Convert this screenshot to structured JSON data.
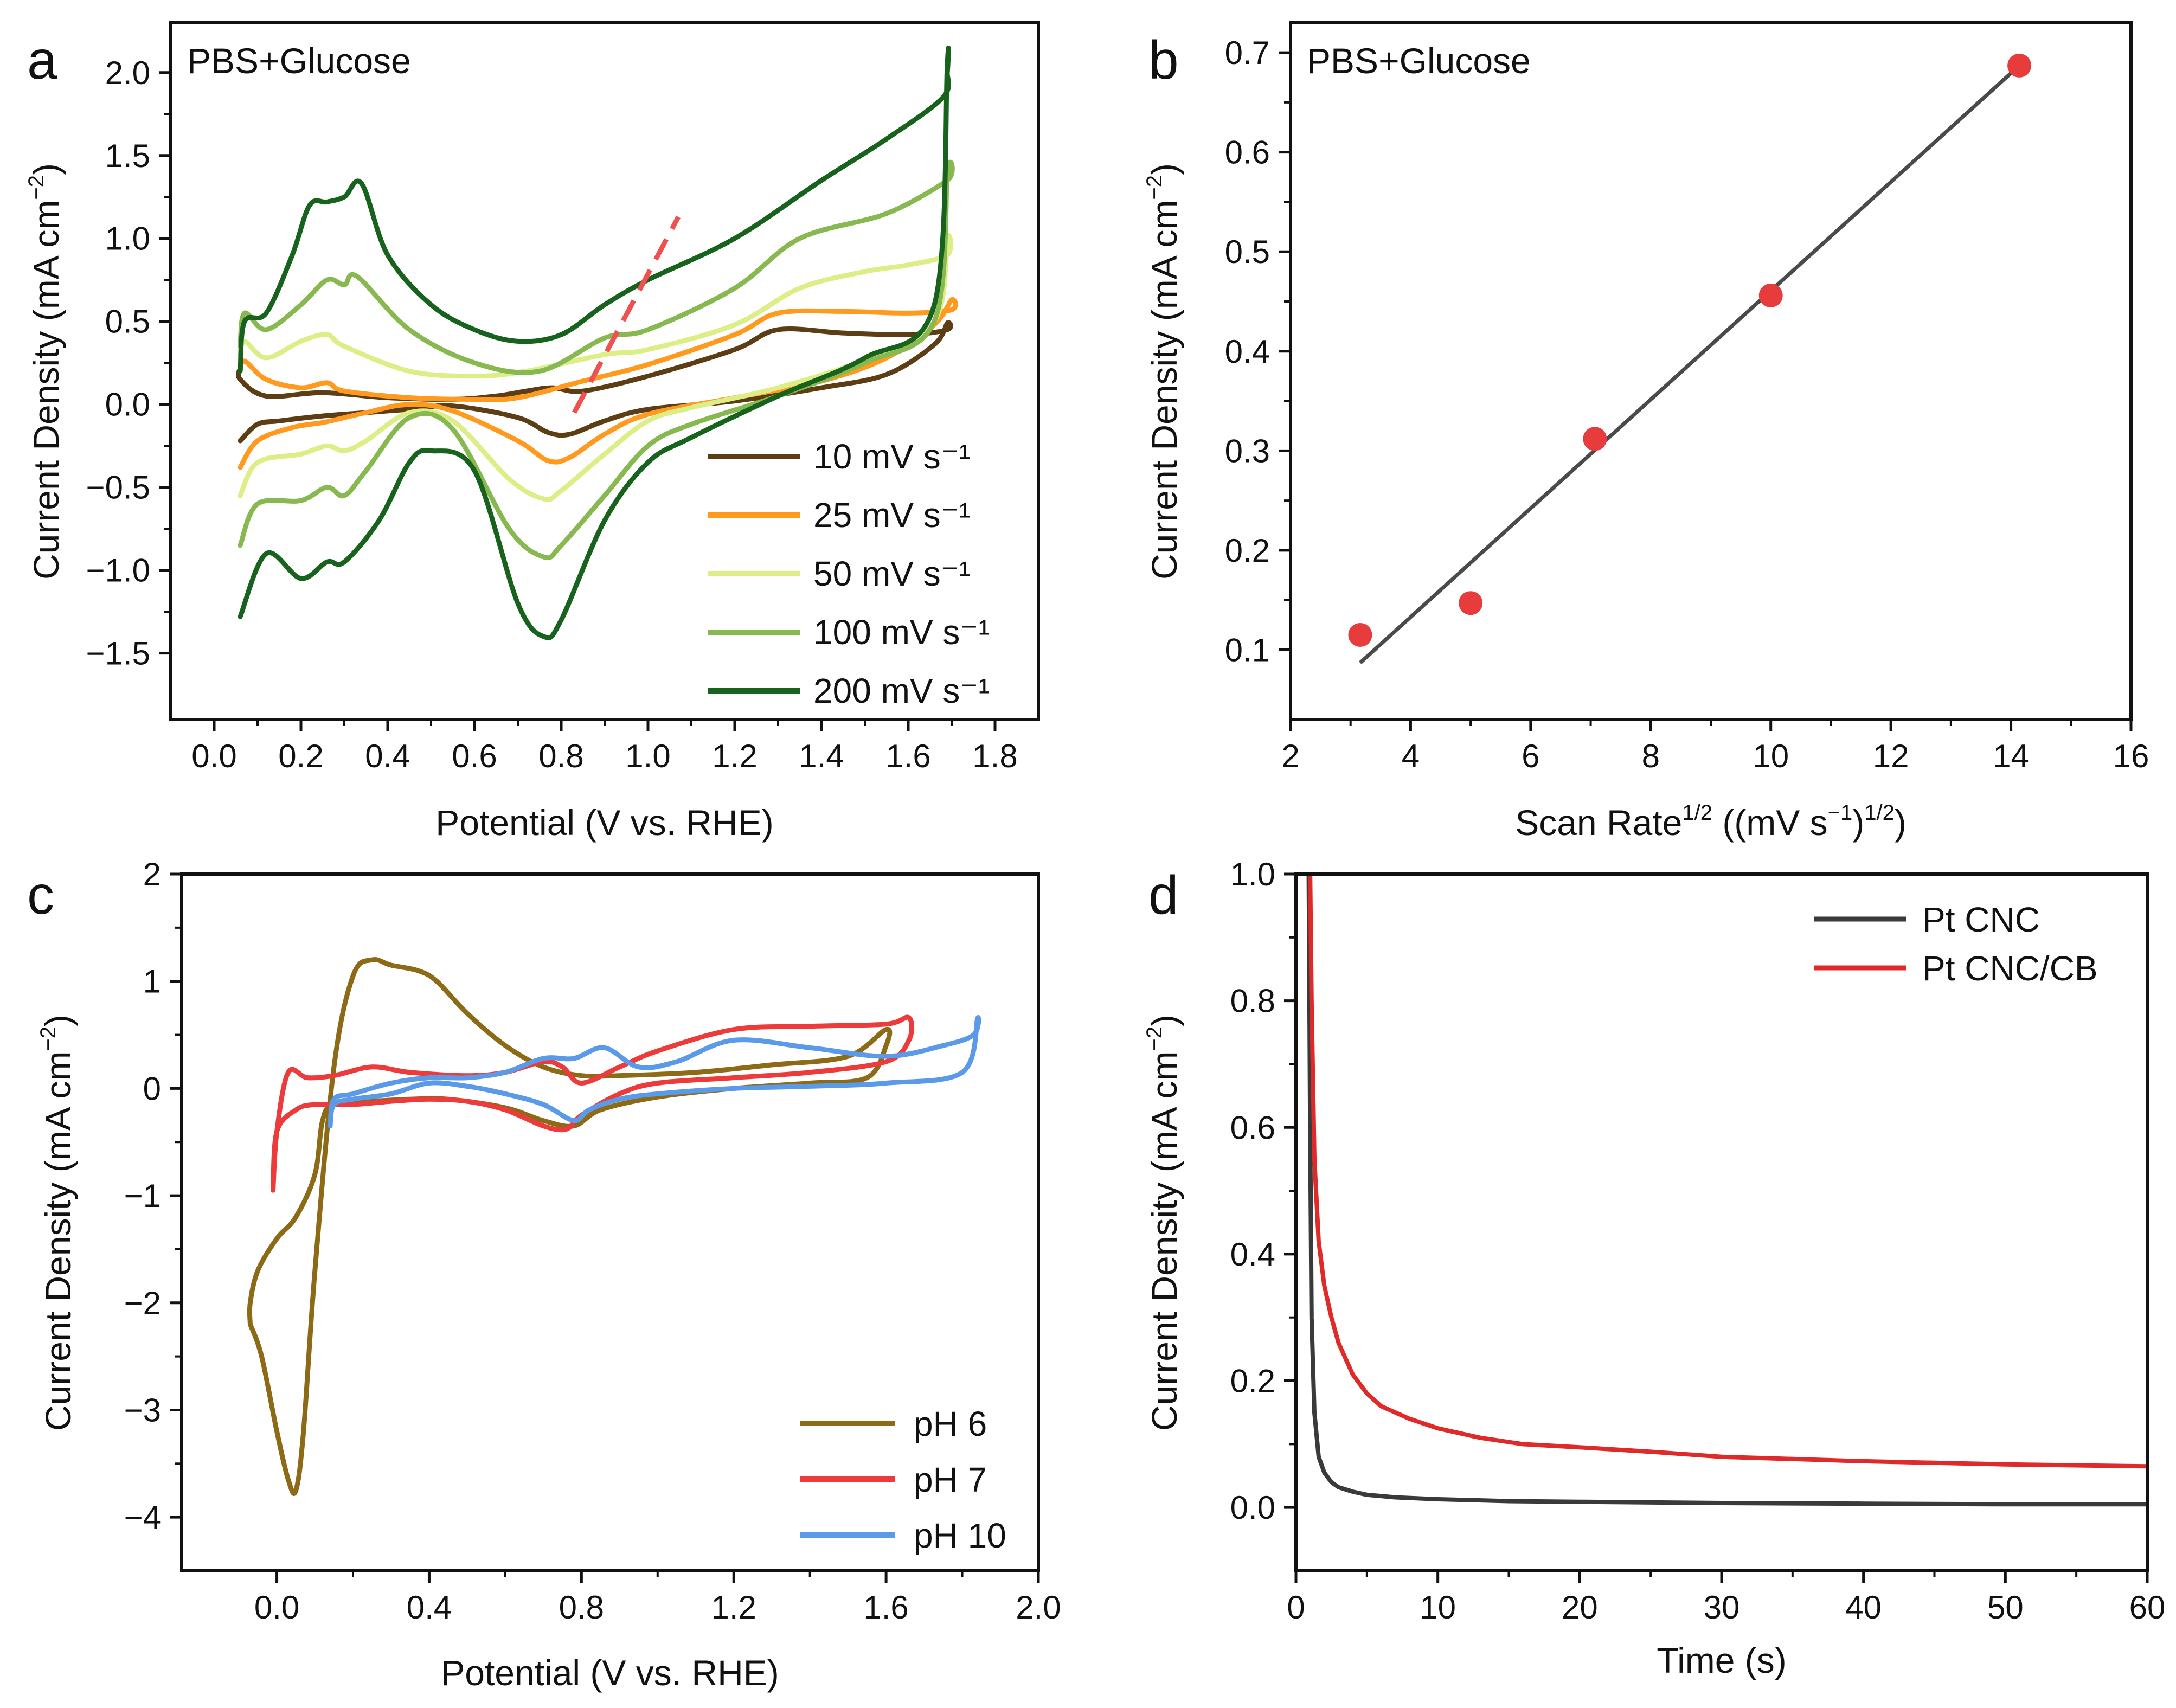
{
  "colors": {
    "s10": "#5c3d14",
    "s25": "#ff9a1f",
    "s50": "#dcee86",
    "s100": "#88b850",
    "s200": "#17621c",
    "ph6": "#8c6a16",
    "ph7": "#ed3a3a",
    "ph10": "#5b9ae8",
    "ptcnc": "#3a3a3a",
    "ptcnccb": "#e02a2a",
    "marker": "#e83c3c",
    "fit": "#4a4a4a",
    "dash": "#f05050"
  },
  "chart_data": [
    {
      "id": "a",
      "panel_label": "a",
      "type": "line",
      "title": "PBS+Glucose",
      "xlabel": "Potential (V vs. RHE)",
      "ylabel": "Current Density (mA cm",
      "ylabel_sup": "−2",
      "ylabel_close": ")",
      "xlim": [
        -0.1,
        1.9
      ],
      "ylim": [
        -1.9,
        2.3
      ],
      "xticks": [
        0.0,
        0.2,
        0.4,
        0.6,
        0.8,
        1.0,
        1.2,
        1.4,
        1.6,
        1.8
      ],
      "xtick_labels": [
        "0.0",
        "0.2",
        "0.4",
        "0.6",
        "0.8",
        "1.0",
        "1.2",
        "1.4",
        "1.6",
        "1.8"
      ],
      "yticks": [
        -1.5,
        -1.0,
        -0.5,
        0.0,
        0.5,
        1.0,
        1.5,
        2.0
      ],
      "ytick_labels": [
        "−1.5",
        "−1.0",
        "−0.5",
        "0.0",
        "0.5",
        "1.0",
        "1.5",
        "2.0"
      ],
      "legend_position": "bottom-right",
      "series": [
        {
          "name": "10 mV s⁻¹",
          "color_key": "s10",
          "x": [
            0.06,
            0.06,
            0.12,
            0.25,
            0.4,
            0.55,
            0.65,
            0.72,
            0.78,
            0.85,
            1.0,
            1.2,
            1.3,
            1.45,
            1.6,
            1.69,
            1.69,
            1.66,
            1.55,
            1.4,
            1.2,
            1.0,
            0.9,
            0.82,
            0.77,
            0.7,
            0.55,
            0.45,
            0.35,
            0.25,
            0.15,
            0.1,
            0.06
          ],
          "y": [
            0.22,
            0.15,
            0.05,
            0.07,
            0.04,
            0.03,
            0.05,
            0.08,
            0.1,
            0.08,
            0.17,
            0.33,
            0.45,
            0.43,
            0.42,
            0.45,
            0.49,
            0.36,
            0.18,
            0.1,
            0.02,
            -0.03,
            -0.1,
            -0.18,
            -0.17,
            -0.08,
            -0.01,
            -0.03,
            -0.05,
            -0.07,
            -0.1,
            -0.12,
            -0.22
          ]
        },
        {
          "name": "25 mV s⁻¹",
          "color_key": "s25",
          "x": [
            0.06,
            0.07,
            0.12,
            0.2,
            0.26,
            0.3,
            0.45,
            0.6,
            0.7,
            0.85,
            1.0,
            1.2,
            1.3,
            1.45,
            1.6,
            1.7,
            1.7,
            1.66,
            1.55,
            1.4,
            1.2,
            1.0,
            0.9,
            0.82,
            0.77,
            0.7,
            0.55,
            0.45,
            0.35,
            0.3,
            0.25,
            0.18,
            0.1,
            0.06
          ],
          "y": [
            0.2,
            0.26,
            0.15,
            0.1,
            0.13,
            0.08,
            0.04,
            0.03,
            0.04,
            0.14,
            0.24,
            0.42,
            0.55,
            0.56,
            0.55,
            0.57,
            0.63,
            0.48,
            0.28,
            0.14,
            0.04,
            -0.06,
            -0.18,
            -0.32,
            -0.34,
            -0.22,
            -0.04,
            0.0,
            -0.05,
            -0.08,
            -0.11,
            -0.14,
            -0.22,
            -0.38
          ]
        },
        {
          "name": "50 mV s⁻¹",
          "color_key": "s50",
          "x": [
            0.06,
            0.07,
            0.12,
            0.2,
            0.26,
            0.3,
            0.45,
            0.6,
            0.72,
            0.9,
            1.0,
            1.2,
            1.35,
            1.5,
            1.6,
            1.69,
            1.69,
            1.66,
            1.5,
            1.3,
            1.1,
            1.0,
            0.9,
            0.8,
            0.76,
            0.68,
            0.55,
            0.45,
            0.35,
            0.3,
            0.26,
            0.2,
            0.1,
            0.06
          ],
          "y": [
            0.3,
            0.38,
            0.28,
            0.38,
            0.42,
            0.35,
            0.2,
            0.17,
            0.2,
            0.3,
            0.33,
            0.48,
            0.7,
            0.8,
            0.84,
            0.9,
            1.0,
            0.5,
            0.27,
            0.1,
            -0.02,
            -0.1,
            -0.3,
            -0.52,
            -0.57,
            -0.45,
            -0.1,
            -0.05,
            -0.22,
            -0.28,
            -0.25,
            -0.3,
            -0.35,
            -0.55
          ]
        },
        {
          "name": "100 mV s⁻¹",
          "color_key": "s100",
          "x": [
            0.06,
            0.07,
            0.12,
            0.2,
            0.26,
            0.3,
            0.33,
            0.45,
            0.6,
            0.75,
            0.9,
            1.0,
            1.2,
            1.35,
            1.55,
            1.69,
            1.69,
            1.66,
            1.5,
            1.3,
            1.1,
            1.0,
            0.9,
            0.8,
            0.76,
            0.68,
            0.55,
            0.45,
            0.35,
            0.3,
            0.26,
            0.2,
            0.1,
            0.06
          ],
          "y": [
            0.35,
            0.55,
            0.45,
            0.6,
            0.75,
            0.72,
            0.77,
            0.45,
            0.25,
            0.2,
            0.4,
            0.45,
            0.7,
            1.0,
            1.15,
            1.35,
            1.4,
            0.5,
            0.25,
            0.05,
            -0.12,
            -0.25,
            -0.55,
            -0.85,
            -0.92,
            -0.75,
            -0.15,
            -0.08,
            -0.4,
            -0.55,
            -0.5,
            -0.58,
            -0.6,
            -0.85
          ]
        },
        {
          "name": "200 mV s⁻¹",
          "color_key": "s200",
          "x": [
            0.06,
            0.07,
            0.12,
            0.18,
            0.22,
            0.26,
            0.3,
            0.34,
            0.4,
            0.5,
            0.6,
            0.7,
            0.8,
            0.9,
            1.0,
            1.2,
            1.4,
            1.55,
            1.68,
            1.69,
            1.69,
            1.66,
            1.5,
            1.3,
            1.1,
            1.0,
            0.9,
            0.8,
            0.76,
            0.7,
            0.6,
            0.5,
            0.45,
            0.38,
            0.3,
            0.26,
            0.2,
            0.12,
            0.06
          ],
          "y": [
            0.2,
            0.5,
            0.55,
            0.9,
            1.2,
            1.22,
            1.25,
            1.33,
            0.9,
            0.6,
            0.45,
            0.38,
            0.42,
            0.6,
            0.75,
            1.0,
            1.35,
            1.6,
            1.85,
            2.0,
            2.05,
            0.6,
            0.28,
            0.05,
            -0.2,
            -0.35,
            -0.7,
            -1.3,
            -1.4,
            -1.2,
            -0.4,
            -0.28,
            -0.35,
            -0.7,
            -0.95,
            -0.95,
            -1.05,
            -0.9,
            -1.28
          ]
        }
      ],
      "annotations": [
        {
          "type": "dashed-line",
          "color_key": "dash",
          "x": [
            0.83,
            1.07
          ],
          "y": [
            -0.05,
            1.13
          ]
        }
      ]
    },
    {
      "id": "b",
      "panel_label": "b",
      "type": "scatter",
      "title": "PBS+Glucose",
      "xlabel": "Scan Rate",
      "xlabel_sup": "1/2",
      "xlabel_rest": " ((mV s",
      "xlabel_sup2": "−1",
      "xlabel_rest2": ")",
      "xlabel_sup3": "1/2",
      "xlabel_close": ")",
      "ylabel": "Current Density (mA cm",
      "ylabel_sup": "−2",
      "ylabel_close": ")",
      "xlim": [
        2,
        16
      ],
      "ylim": [
        0.03,
        0.73
      ],
      "xticks": [
        2,
        4,
        6,
        8,
        10,
        12,
        14,
        16
      ],
      "xtick_labels": [
        "2",
        "4",
        "6",
        "8",
        "10",
        "12",
        "14",
        "16"
      ],
      "yticks": [
        0.1,
        0.2,
        0.3,
        0.4,
        0.5,
        0.6,
        0.7
      ],
      "ytick_labels": [
        "0.1",
        "0.2",
        "0.3",
        "0.4",
        "0.5",
        "0.6",
        "0.7"
      ],
      "points": {
        "x": [
          3.16,
          5.0,
          7.07,
          10.0,
          14.14
        ],
        "y": [
          0.115,
          0.147,
          0.312,
          0.456,
          0.687
        ]
      },
      "fit": {
        "x": [
          3.16,
          14.14
        ],
        "y": [
          0.087,
          0.687
        ]
      }
    },
    {
      "id": "c",
      "panel_label": "c",
      "type": "line",
      "xlabel": "Potential (V vs. RHE)",
      "ylabel": "Current Density (mA cm",
      "ylabel_sup": "−2",
      "ylabel_close": ")",
      "xlim": [
        -0.25,
        2.0
      ],
      "ylim": [
        -4.5,
        2.0
      ],
      "xticks": [
        0.0,
        0.4,
        0.8,
        1.2,
        1.6,
        2.0
      ],
      "xtick_labels": [
        "0.0",
        "0.4",
        "0.8",
        "1.2",
        "1.6",
        "2.0"
      ],
      "yticks": [
        -4,
        -3,
        -2,
        -1,
        0,
        1,
        2
      ],
      "ytick_labels": [
        "−4",
        "−3",
        "−2",
        "−1",
        "0",
        "1",
        "2"
      ],
      "legend_position": "bottom-right",
      "series": [
        {
          "name": "pH 6",
          "color_key": "ph6",
          "x": [
            -0.07,
            -0.04,
            0.0,
            0.03,
            0.05,
            0.07,
            0.1,
            0.15,
            0.2,
            0.25,
            0.3,
            0.37,
            0.42,
            0.5,
            0.6,
            0.7,
            0.8,
            0.9,
            1.1,
            1.3,
            1.5,
            1.6,
            1.6,
            1.55,
            1.4,
            1.2,
            1.0,
            0.85,
            0.78,
            0.7,
            0.6,
            0.45,
            0.35,
            0.25,
            0.15,
            0.12,
            0.1,
            0.05,
            0.0,
            -0.05,
            -0.07,
            -0.07
          ],
          "y": [
            -2.2,
            -2.5,
            -3.2,
            -3.65,
            -3.75,
            -3.2,
            -1.7,
            0.2,
            1.05,
            1.2,
            1.15,
            1.1,
            1.0,
            0.7,
            0.4,
            0.2,
            0.12,
            0.12,
            0.15,
            0.22,
            0.3,
            0.55,
            0.4,
            0.1,
            0.05,
            0.0,
            -0.08,
            -0.2,
            -0.35,
            -0.3,
            -0.18,
            -0.1,
            -0.1,
            -0.12,
            -0.15,
            -0.3,
            -0.8,
            -1.2,
            -1.4,
            -1.7,
            -2.0,
            -2.2
          ]
        },
        {
          "name": "pH 7",
          "color_key": "ph7",
          "x": [
            -0.01,
            0.0,
            0.03,
            0.08,
            0.15,
            0.25,
            0.35,
            0.5,
            0.6,
            0.7,
            0.75,
            0.8,
            0.9,
            1.0,
            1.2,
            1.4,
            1.6,
            1.66,
            1.66,
            1.6,
            1.4,
            1.2,
            1.0,
            0.9,
            0.8,
            0.76,
            0.7,
            0.6,
            0.5,
            0.4,
            0.3,
            0.2,
            0.1,
            0.05,
            0.0,
            -0.01
          ],
          "y": [
            -0.95,
            -0.4,
            0.15,
            0.1,
            0.12,
            0.2,
            0.15,
            0.12,
            0.15,
            0.25,
            0.2,
            0.05,
            0.2,
            0.35,
            0.55,
            0.58,
            0.6,
            0.66,
            0.45,
            0.25,
            0.15,
            0.1,
            0.05,
            -0.05,
            -0.25,
            -0.38,
            -0.35,
            -0.2,
            -0.12,
            -0.1,
            -0.12,
            -0.15,
            -0.15,
            -0.2,
            -0.4,
            -0.95
          ]
        },
        {
          "name": "pH 10",
          "color_key": "ph10",
          "x": [
            0.14,
            0.15,
            0.2,
            0.3,
            0.4,
            0.5,
            0.6,
            0.7,
            0.78,
            0.86,
            0.95,
            1.05,
            1.2,
            1.4,
            1.6,
            1.75,
            1.83,
            1.84,
            1.8,
            1.6,
            1.4,
            1.2,
            1.0,
            0.9,
            0.82,
            0.78,
            0.7,
            0.6,
            0.5,
            0.4,
            0.3,
            0.2,
            0.15,
            0.14
          ],
          "y": [
            -0.35,
            -0.1,
            -0.05,
            0.05,
            0.1,
            0.1,
            0.15,
            0.28,
            0.28,
            0.38,
            0.2,
            0.25,
            0.45,
            0.38,
            0.3,
            0.4,
            0.5,
            0.65,
            0.15,
            0.05,
            0.02,
            0.0,
            -0.05,
            -0.1,
            -0.2,
            -0.3,
            -0.15,
            -0.05,
            0.02,
            0.05,
            -0.05,
            -0.1,
            -0.15,
            -0.35
          ]
        }
      ]
    },
    {
      "id": "d",
      "panel_label": "d",
      "type": "line",
      "xlabel": "Time (s)",
      "ylabel": "Current Density (mA cm",
      "ylabel_sup": "−2",
      "ylabel_close": ")",
      "xlim": [
        0,
        60
      ],
      "ylim": [
        -0.1,
        1.0
      ],
      "xticks": [
        0,
        10,
        20,
        30,
        40,
        50,
        60
      ],
      "xtick_labels": [
        "0",
        "10",
        "20",
        "30",
        "40",
        "50",
        "60"
      ],
      "yticks": [
        0.0,
        0.2,
        0.4,
        0.6,
        0.8,
        1.0
      ],
      "ytick_labels": [
        "0.0",
        "0.2",
        "0.4",
        "0.6",
        "0.8",
        "1.0"
      ],
      "legend_position": "top-right",
      "series": [
        {
          "name": "Pt CNC",
          "color_key": "ptcnc",
          "x": [
            0.9,
            1.0,
            1.1,
            1.3,
            1.6,
            2.0,
            2.5,
            3.0,
            4.0,
            5.0,
            7.0,
            10.0,
            15.0,
            20.0,
            30.0,
            40.0,
            50.0,
            60.0
          ],
          "y": [
            1.0,
            0.6,
            0.3,
            0.15,
            0.08,
            0.055,
            0.04,
            0.032,
            0.025,
            0.02,
            0.016,
            0.013,
            0.01,
            0.009,
            0.007,
            0.006,
            0.005,
            0.005
          ]
        },
        {
          "name": "Pt CNC/CB",
          "color_key": "ptcnccb",
          "x": [
            1.0,
            1.1,
            1.3,
            1.6,
            2.0,
            2.5,
            3.0,
            4.0,
            5.0,
            6.0,
            8.0,
            10.0,
            13.0,
            16.0,
            20.0,
            25.0,
            30.0,
            40.0,
            50.0,
            60.0
          ],
          "y": [
            1.0,
            0.8,
            0.55,
            0.42,
            0.35,
            0.3,
            0.26,
            0.21,
            0.18,
            0.16,
            0.14,
            0.125,
            0.11,
            0.1,
            0.095,
            0.088,
            0.08,
            0.073,
            0.068,
            0.065
          ]
        }
      ]
    }
  ]
}
